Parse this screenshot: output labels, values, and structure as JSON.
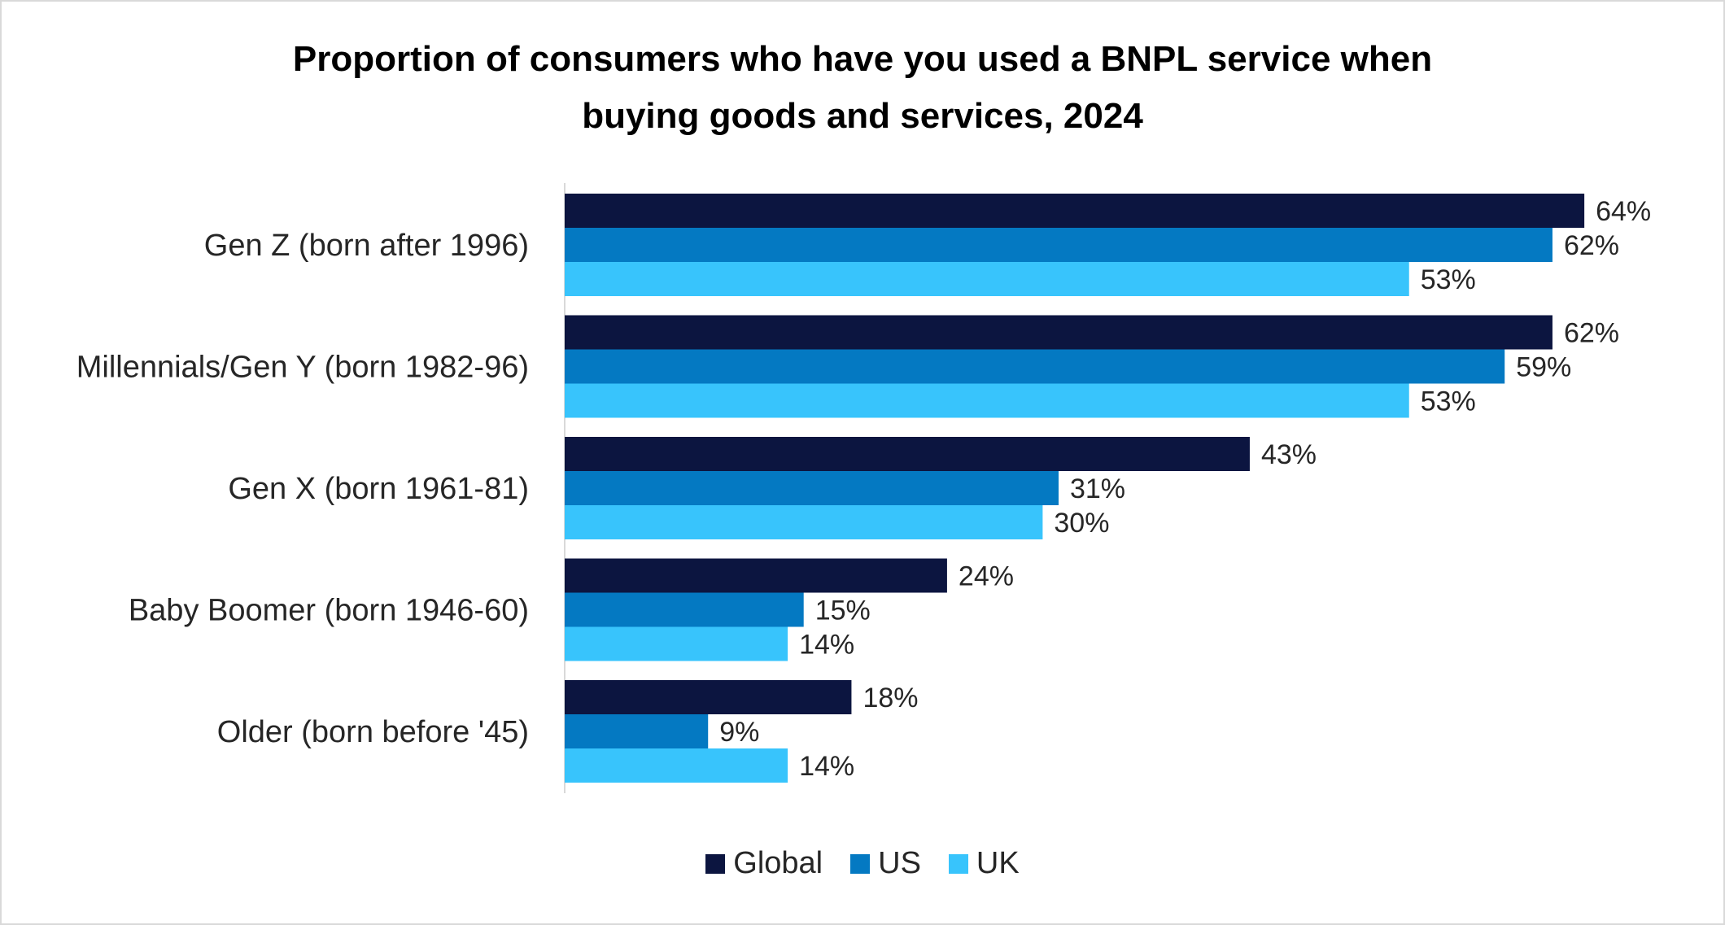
{
  "chart_data": {
    "type": "bar",
    "orientation": "horizontal",
    "title": "Proportion of consumers who have you used a BNPL service when buying goods and services, 2024",
    "title_lines": [
      "Proportion of consumers who have you used a BNPL service when",
      "buying goods and services, 2024"
    ],
    "categories": [
      "Gen Z (born after 1996)",
      "Millennials/Gen Y (born 1982-96)",
      "Gen X (born 1961-81)",
      "Baby Boomer (born 1946-60)",
      "Older (born before '45)"
    ],
    "series": [
      {
        "name": "Global",
        "color": "#0c1540",
        "values": [
          64,
          62,
          43,
          24,
          18
        ],
        "labels": [
          "64%",
          "62%",
          "43%",
          "24%",
          "18%"
        ]
      },
      {
        "name": "US",
        "color": "#0479c2",
        "values": [
          62,
          59,
          31,
          15,
          9
        ],
        "labels": [
          "62%",
          "59%",
          "31%",
          "15%",
          "9%"
        ]
      },
      {
        "name": "UK",
        "color": "#38c4fc",
        "values": [
          53,
          53,
          30,
          14,
          14
        ],
        "labels": [
          "53%",
          "53%",
          "30%",
          "14%",
          "14%"
        ]
      }
    ],
    "unit": "%",
    "xlim": [
      0,
      70
    ],
    "grid": false,
    "legend_position": "bottom"
  }
}
